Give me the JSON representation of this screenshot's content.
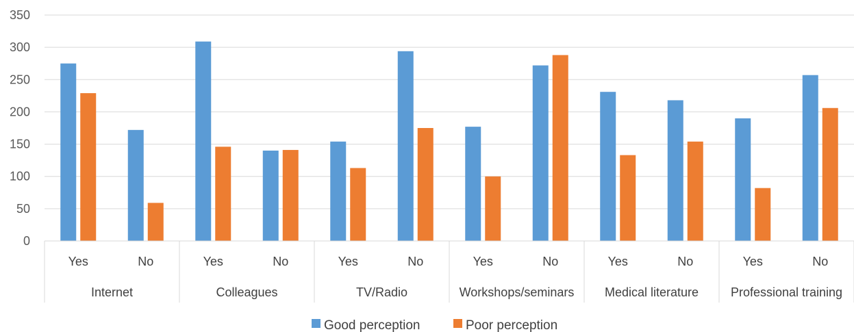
{
  "chart_data": {
    "type": "bar",
    "title": "",
    "xlabel": "",
    "ylabel": "",
    "ylim": [
      0,
      350
    ],
    "yticks": [
      0,
      50,
      100,
      150,
      200,
      250,
      300,
      350
    ],
    "grid": true,
    "legend_position": "bottom",
    "groups": [
      {
        "name": "Internet",
        "categories": [
          "Yes",
          "No"
        ]
      },
      {
        "name": "Colleagues",
        "categories": [
          "Yes",
          "No"
        ]
      },
      {
        "name": "TV/Radio",
        "categories": [
          "Yes",
          "No"
        ]
      },
      {
        "name": "Workshops/seminars",
        "categories": [
          "Yes",
          "No"
        ]
      },
      {
        "name": "Medical literature",
        "categories": [
          "Yes",
          "No"
        ]
      },
      {
        "name": "Professional training",
        "categories": [
          "Yes",
          "No"
        ]
      }
    ],
    "series": [
      {
        "name": "Good perception",
        "color": "#5B9BD5",
        "values": [
          275,
          172,
          309,
          140,
          154,
          294,
          177,
          272,
          231,
          218,
          190,
          257
        ]
      },
      {
        "name": "Poor perception",
        "color": "#ED7D31",
        "values": [
          229,
          59,
          146,
          141,
          113,
          175,
          100,
          288,
          133,
          154,
          82,
          206
        ]
      }
    ]
  }
}
